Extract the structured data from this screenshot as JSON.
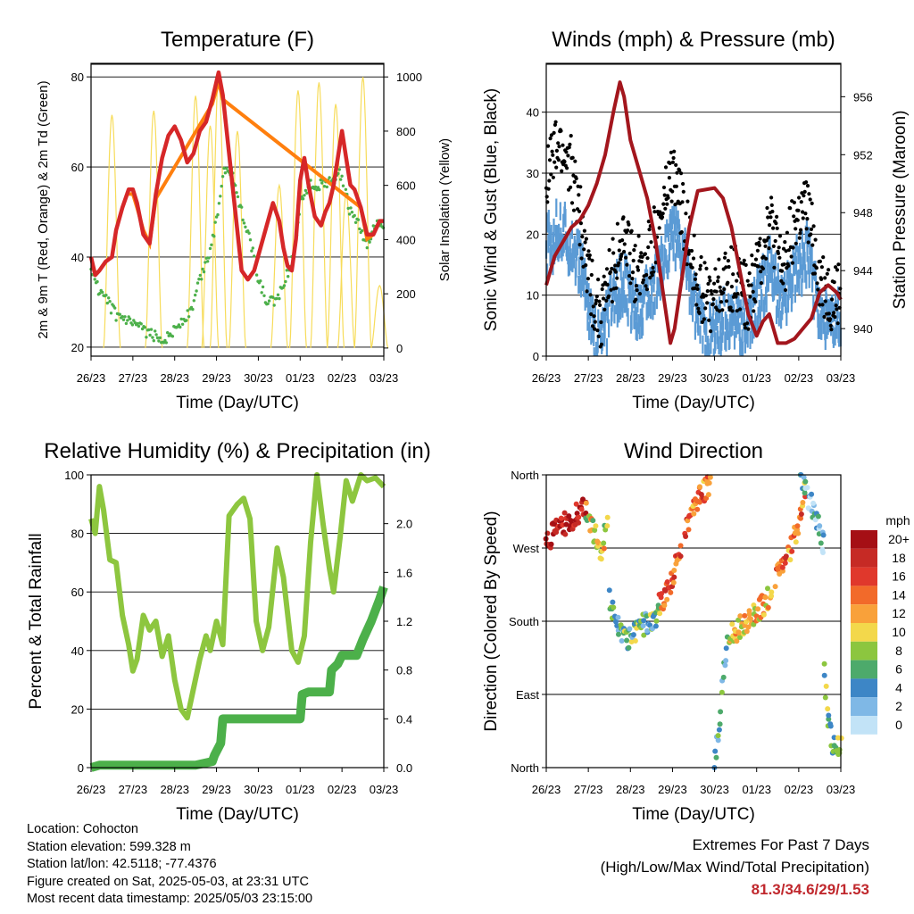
{
  "meta": {
    "location": "Location: Cohocton",
    "elevation": "Station elevation: 599.328 m",
    "latlon": "Station lat/lon: 42.5118; -77.4376",
    "created": "Figure created on Sat, 2025-05-03, at 23:31 UTC",
    "latest": "Most recent data timestamp: 2025/05/03 23:15:00"
  },
  "extremes": {
    "title": "Extremes For Past 7 Days",
    "subtitle": "(High/Low/Max Wind/Total Precipitation)",
    "values": "81.3/34.6/29/1.53"
  },
  "colors": {
    "temp_2m": "#d62728",
    "temp_9m": "#ff7f0e",
    "dewpoint": "#4cb04a",
    "solar": "#f7dc5a",
    "wind": "#5b9bd5",
    "gust": "#000000",
    "pressure": "#a3161d",
    "rh": "#8dc63f",
    "precip": "#4cb04a"
  },
  "chart_data": [
    {
      "id": "temperature",
      "type": "line",
      "title": "Temperature (F)",
      "xlabel": "Time (Day/UTC)",
      "ylabel": "2m & 9m T (Red, Orange) & 2m Td (Green)",
      "y2label": "Solar Insolation (Yellow)",
      "x_ticks": [
        "26/23",
        "27/23",
        "28/23",
        "29/23",
        "30/23",
        "01/23",
        "02/23",
        "03/23"
      ],
      "xlim": [
        0,
        7
      ],
      "ylim": [
        18,
        83
      ],
      "y_ticks": [
        20,
        40,
        60,
        80
      ],
      "y2lim": [
        -30,
        1050
      ],
      "y2_ticks": [
        0,
        200,
        400,
        600,
        800,
        1000
      ],
      "grid": "horizontal",
      "series": [
        {
          "key": "temp_2m",
          "x": [
            0,
            0.1,
            0.2,
            0.35,
            0.5,
            0.6,
            0.75,
            0.9,
            1.0,
            1.1,
            1.25,
            1.4,
            1.55,
            1.7,
            1.85,
            2.0,
            2.15,
            2.3,
            2.45,
            2.6,
            2.75,
            2.9,
            3.05,
            3.15,
            3.3,
            3.45,
            3.6,
            3.75,
            3.9,
            4.05,
            4.2,
            4.35,
            4.5,
            4.6,
            4.7,
            4.8,
            4.9,
            5.0,
            5.1,
            5.2,
            5.35,
            5.5,
            5.6,
            5.7,
            5.8,
            5.9,
            6.0,
            6.1,
            6.2,
            6.3,
            6.45,
            6.6,
            6.75,
            6.9,
            7.0
          ],
          "y": [
            40,
            36,
            37,
            39,
            40,
            46,
            51,
            55,
            55,
            52,
            45,
            43,
            54,
            62,
            67,
            69,
            66,
            61,
            63,
            68,
            70,
            75,
            81,
            76,
            63,
            50,
            37,
            35,
            37,
            42,
            47,
            52,
            48,
            42,
            38,
            37,
            44,
            57,
            62,
            56,
            49,
            47,
            50,
            52,
            56,
            62,
            68,
            62,
            56,
            55,
            51,
            45,
            45,
            48,
            48
          ]
        },
        {
          "key": "temp_9m",
          "x": [
            0.9,
            1.0,
            1.1,
            1.25,
            1.4,
            1.55,
            2.9,
            3.05,
            3.15,
            6.45,
            6.6,
            6.75
          ],
          "y": [
            54,
            54,
            51,
            46,
            43,
            53,
            74,
            79,
            75,
            51,
            44,
            45
          ]
        },
        {
          "key": "dewpoint",
          "x": [
            0,
            0.2,
            0.4,
            0.6,
            0.8,
            1.0,
            1.2,
            1.4,
            1.6,
            1.8,
            2.0,
            2.2,
            2.4,
            2.6,
            2.8,
            3.0,
            3.15,
            3.3,
            3.45,
            3.6,
            3.8,
            4.0,
            4.2,
            4.4,
            4.6,
            4.8,
            4.9,
            5.0,
            5.2,
            5.4,
            5.6,
            5.8,
            5.9,
            6.0,
            6.2,
            6.4,
            6.6,
            6.8,
            7.0
          ],
          "y": [
            38,
            32,
            30,
            27,
            26,
            25,
            24,
            23,
            22,
            22,
            24,
            26,
            28,
            35,
            40,
            48,
            59,
            60,
            56,
            50,
            44,
            35,
            30,
            30,
            34,
            39,
            44,
            52,
            56,
            56,
            56,
            57,
            59,
            57,
            50,
            47,
            42,
            47,
            47
          ]
        },
        {
          "key": "solar",
          "peaks": [
            [
              0.5,
              860
            ],
            [
              1.5,
              875
            ],
            [
              2.5,
              930
            ],
            [
              2.85,
              820
            ],
            [
              3.05,
              1000
            ],
            [
              3.5,
              800
            ],
            [
              4.5,
              600
            ],
            [
              4.95,
              950
            ],
            [
              5.45,
              980
            ],
            [
              5.85,
              900
            ],
            [
              6.1,
              570
            ],
            [
              6.5,
              1000
            ],
            [
              6.9,
              230
            ]
          ]
        }
      ]
    },
    {
      "id": "winds",
      "type": "scatter",
      "title": "Winds (mph) & Pressure (mb)",
      "xlabel": "Time (Day/UTC)",
      "ylabel": "Sonic Wind & Gust (Blue, Black)",
      "y2label": "Station Pressure (Maroon)",
      "x_ticks": [
        "26/23",
        "27/23",
        "28/23",
        "29/23",
        "30/23",
        "01/23",
        "02/23",
        "03/23"
      ],
      "xlim": [
        0,
        7
      ],
      "ylim": [
        0,
        48
      ],
      "y_ticks": [
        0,
        10,
        20,
        30,
        40
      ],
      "y2lim": [
        938.1,
        958.3
      ],
      "y2_ticks": [
        940,
        944,
        948,
        952,
        956
      ],
      "grid": "horizontal",
      "series": [
        {
          "key": "wind",
          "x": [
            0,
            0.3,
            0.6,
            0.9,
            1.1,
            1.3,
            1.5,
            1.8,
            2.1,
            2.4,
            2.7,
            3.0,
            3.3,
            3.6,
            3.9,
            4.2,
            4.5,
            4.8,
            5.0,
            5.3,
            5.6,
            5.9,
            6.2,
            6.5,
            6.8,
            7.0
          ],
          "y": [
            19,
            22,
            20,
            14,
            6,
            3,
            9,
            14,
            9,
            11,
            16,
            22,
            17,
            8,
            5,
            7,
            8,
            6,
            10,
            16,
            10,
            16,
            18,
            9,
            6,
            8
          ]
        },
        {
          "key": "gust",
          "x": [
            0,
            0.3,
            0.6,
            0.9,
            1.1,
            1.3,
            1.5,
            1.8,
            2.1,
            2.4,
            2.7,
            3.0,
            3.3,
            3.6,
            3.9,
            4.2,
            4.5,
            4.8,
            5.0,
            5.3,
            5.6,
            5.9,
            6.2,
            6.5,
            6.8,
            7.0
          ],
          "y": [
            30,
            34,
            31,
            19,
            10,
            6,
            13,
            19,
            14,
            16,
            22,
            30,
            22,
            12,
            9,
            12,
            13,
            9,
            14,
            23,
            14,
            22,
            24,
            13,
            9,
            11
          ]
        },
        {
          "key": "pressure",
          "x": [
            0,
            0.2,
            0.4,
            0.6,
            0.8,
            1.0,
            1.2,
            1.4,
            1.6,
            1.75,
            1.85,
            2.0,
            2.2,
            2.4,
            2.6,
            2.8,
            2.95,
            3.05,
            3.2,
            3.4,
            3.6,
            3.8,
            4.0,
            4.2,
            4.4,
            4.6,
            4.8,
            5.0,
            5.15,
            5.3,
            5.5,
            5.7,
            5.9,
            6.1,
            6.3,
            6.5,
            6.7,
            6.9,
            7.0
          ],
          "y": [
            943,
            945,
            946,
            947,
            947.5,
            948.5,
            950,
            952,
            955,
            957,
            956,
            953,
            951,
            949,
            946,
            942,
            939,
            940,
            943,
            947,
            949.5,
            949.6,
            949.7,
            949,
            947,
            944,
            941,
            939.5,
            940.5,
            941,
            939,
            939,
            939.3,
            940,
            940.7,
            942.5,
            943,
            942.5,
            942
          ]
        }
      ]
    },
    {
      "id": "humidity",
      "type": "line",
      "title": "Relative Humidity (%) & Precipitation (in)",
      "xlabel": "Time (Day/UTC)",
      "ylabel": "Percent & Total Rainfall",
      "x_ticks": [
        "26/23",
        "27/23",
        "28/23",
        "29/23",
        "30/23",
        "01/23",
        "02/23",
        "03/23"
      ],
      "xlim": [
        0,
        7
      ],
      "ylim": [
        0,
        100
      ],
      "y_ticks": [
        0,
        20,
        40,
        60,
        80,
        100
      ],
      "y2lim": [
        0,
        2.4
      ],
      "y2_ticks": [
        0.0,
        0.4,
        0.8,
        1.2,
        1.6,
        2.0
      ],
      "grid": "horizontal",
      "series": [
        {
          "key": "rh",
          "x": [
            0,
            0.1,
            0.2,
            0.3,
            0.45,
            0.6,
            0.75,
            0.9,
            1.0,
            1.1,
            1.25,
            1.4,
            1.55,
            1.7,
            1.85,
            2.0,
            2.15,
            2.3,
            2.45,
            2.6,
            2.75,
            2.85,
            3.0,
            3.15,
            3.3,
            3.5,
            3.65,
            3.8,
            3.95,
            4.1,
            4.25,
            4.45,
            4.6,
            4.8,
            4.95,
            5.1,
            5.25,
            5.4,
            5.55,
            5.7,
            5.8,
            5.95,
            6.1,
            6.25,
            6.45,
            6.6,
            6.8,
            7.0
          ],
          "y": [
            85,
            80,
            96,
            88,
            71,
            70,
            52,
            42,
            33,
            37,
            52,
            47,
            50,
            38,
            45,
            30,
            20,
            17,
            27,
            37,
            45,
            40,
            50,
            42,
            86,
            90,
            92,
            85,
            50,
            40,
            48,
            75,
            65,
            40,
            36,
            45,
            77,
            100,
            83,
            68,
            60,
            78,
            98,
            91,
            100,
            98,
            99,
            96
          ]
        },
        {
          "key": "precip",
          "x": [
            0,
            0.2,
            2.5,
            2.9,
            2.95,
            3.1,
            3.15,
            4.6,
            5.0,
            5.05,
            5.2,
            5.7,
            5.75,
            5.9,
            6.0,
            6.1,
            6.35,
            6.5,
            6.7,
            6.9,
            7.0
          ],
          "y": [
            0,
            0.02,
            0.02,
            0.05,
            0.1,
            0.2,
            0.4,
            0.4,
            0.4,
            0.6,
            0.62,
            0.62,
            0.8,
            0.85,
            0.92,
            0.92,
            0.92,
            1.05,
            1.2,
            1.38,
            1.48
          ]
        }
      ]
    },
    {
      "id": "direction",
      "type": "scatter",
      "title": "Wind Direction",
      "xlabel": "Time (Day/UTC)",
      "ylabel": "Direction (Colored By Speed)",
      "x_ticks": [
        "26/23",
        "27/23",
        "28/23",
        "29/23",
        "30/23",
        "01/23",
        "02/23",
        "03/23"
      ],
      "xlim": [
        0,
        7
      ],
      "ylim": [
        0,
        360
      ],
      "y_ticks": [
        0,
        90,
        180,
        270,
        360
      ],
      "y_tick_labels": [
        "North",
        "East",
        "South",
        "West",
        "North"
      ],
      "grid": "horizontal",
      "legend": {
        "title": "mph",
        "placement": "right",
        "labels": [
          "20+",
          "18",
          "16",
          "14",
          "12",
          "10",
          "8",
          "6",
          "4",
          "2",
          "0"
        ],
        "colors": [
          "#a50f15",
          "#c62a25",
          "#e0382c",
          "#f26a2a",
          "#f9a13a",
          "#f3d84b",
          "#8cc63f",
          "#4daa6b",
          "#3d86c6",
          "#7fb8e6",
          "#c2e3f7"
        ]
      },
      "segments": [
        {
          "x": [
            0,
            0.2,
            0.45,
            0.7,
            0.95
          ],
          "y": [
            275,
            290,
            300,
            310,
            322
          ],
          "speed": 19
        },
        {
          "x": [
            0.95,
            1.05,
            1.2,
            1.3,
            1.45
          ],
          "y": [
            320,
            300,
            280,
            265,
            300
          ],
          "speed": 10
        },
        {
          "x": [
            1.5,
            1.6,
            1.75,
            1.9,
            2.1,
            2.3,
            2.5,
            2.7
          ],
          "y": [
            210,
            190,
            170,
            155,
            165,
            175,
            180,
            190
          ],
          "speed": 6
        },
        {
          "x": [
            2.7,
            2.85,
            3.0,
            3.1,
            3.2
          ],
          "y": [
            200,
            215,
            235,
            250,
            265
          ],
          "speed": 15
        },
        {
          "x": [
            3.3,
            3.45,
            3.6,
            3.75,
            3.9
          ],
          "y": [
            295,
            315,
            330,
            340,
            350
          ],
          "speed": 14
        },
        {
          "x": [
            4.0,
            4.05,
            4.15,
            4.2,
            4.3
          ],
          "y": [
            0,
            30,
            70,
            110,
            150
          ],
          "speed": 5
        },
        {
          "x": [
            4.35,
            4.55,
            4.75,
            4.95,
            5.15,
            5.35
          ],
          "y": [
            160,
            170,
            180,
            190,
            200,
            215
          ],
          "speed": 11
        },
        {
          "x": [
            5.45,
            5.6,
            5.75,
            5.95,
            6.15
          ],
          "y": [
            230,
            245,
            260,
            290,
            340
          ],
          "speed": 14
        },
        {
          "x": [
            6.05,
            6.25,
            6.45,
            6.6
          ],
          "y": [
            360,
            330,
            300,
            270
          ],
          "speed": 3
        },
        {
          "x": [
            6.6,
            6.7,
            6.8,
            6.9,
            7.0
          ],
          "y": [
            120,
            60,
            30,
            20,
            30
          ],
          "speed": 7
        }
      ]
    }
  ]
}
